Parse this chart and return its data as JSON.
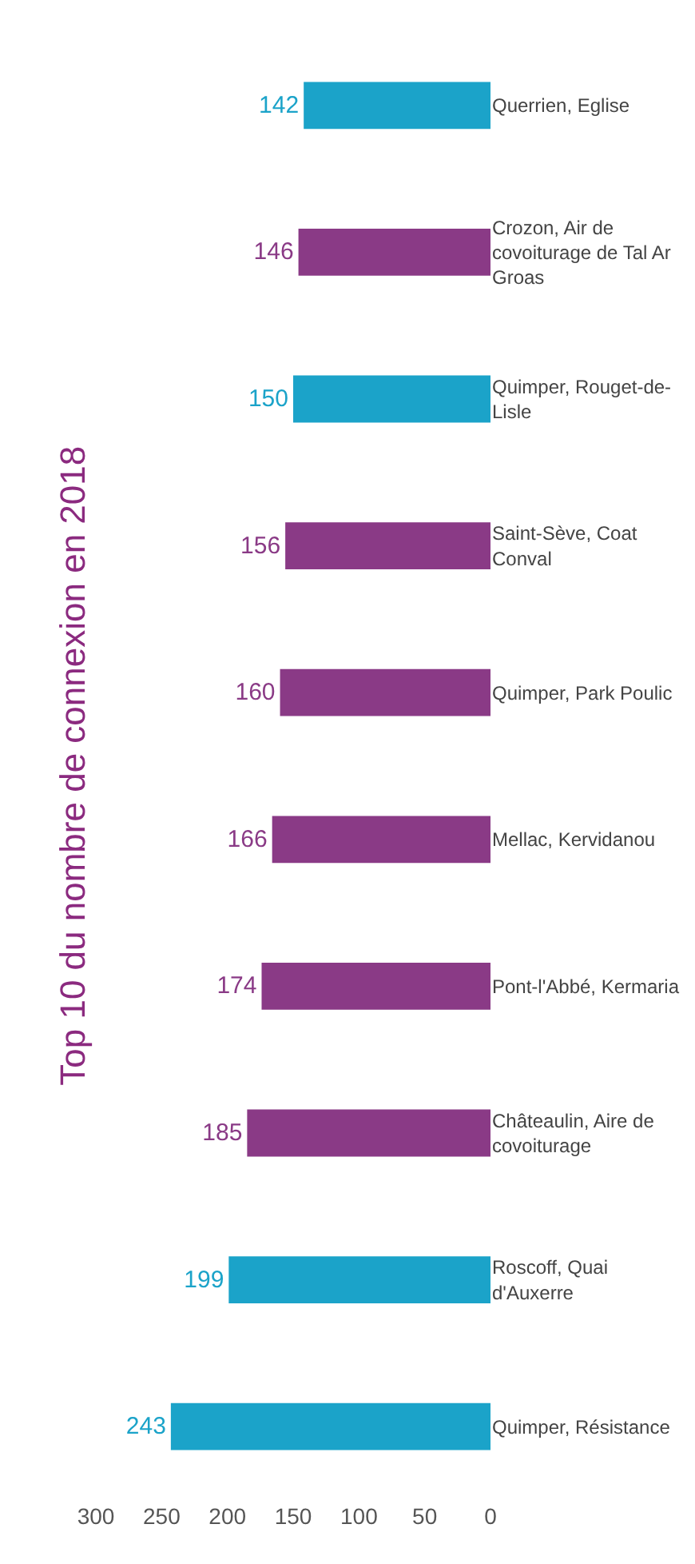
{
  "chart_data": {
    "type": "bar",
    "orientation": "horizontal",
    "title": "Top 10 du nombre de connexion en 2018",
    "categories": [
      "Querrien, Eglise",
      "Crozon, Air de covoiturage de Tal Ar Groas",
      "Quimper, Rouget-de-Lisle",
      "Saint-Sève, Coat Conval",
      "Quimper, Park Poulic",
      "Mellac, Kervidanou",
      "Pont-l'Abbé, Kermaria",
      "Châteaulin, Aire de covoiturage",
      "Roscoff, Quai d'Auxerre",
      "Quimper, Résistance"
    ],
    "values": [
      142,
      146,
      150,
      156,
      160,
      166,
      174,
      185,
      199,
      243
    ],
    "colors": [
      "#1ba3c9",
      "#8a3a86",
      "#1ba3c9",
      "#8a3a86",
      "#8a3a86",
      "#8a3a86",
      "#8a3a86",
      "#8a3a86",
      "#1ba3c9",
      "#1ba3c9"
    ],
    "xlim": [
      300,
      0
    ],
    "xticks": [
      0,
      50,
      100,
      150,
      200,
      250,
      300
    ],
    "data_labels": true
  }
}
